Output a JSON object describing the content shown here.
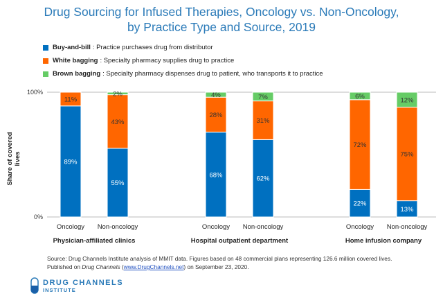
{
  "chart_data": {
    "type": "bar",
    "stacked": true,
    "title": "Drug Sourcing for Infused Therapies, Oncology vs. Non-Oncology, by Practice Type and Source, 2019",
    "title_lines": [
      "Drug Sourcing for Infused Therapies, Oncology vs. Non-Oncology,",
      "by Practice Type and Source, 2019"
    ],
    "ylabel": "Share of covered lives",
    "ylim": [
      0,
      100
    ],
    "yticks": [
      "0%",
      "100%"
    ],
    "groups": [
      "Physician-affiliated clinics",
      "Hospital outpatient department",
      "Home infusion company"
    ],
    "categories": [
      "Oncology",
      "Non-oncology",
      "Oncology",
      "Non-oncology",
      "Oncology",
      "Non-oncology"
    ],
    "series": [
      {
        "name": "Buy-and-bill",
        "description": "Practice purchases drug from distributor",
        "color": "#0070C0",
        "values": [
          89,
          55,
          68,
          62,
          22,
          13
        ],
        "labels": [
          "89%",
          "55%",
          "68%",
          "62%",
          "22%",
          "13%"
        ]
      },
      {
        "name": "White bagging",
        "description": "Specialty pharmacy supplies drug to practice",
        "color": "#FF6600",
        "values": [
          11,
          43,
          28,
          31,
          72,
          75
        ],
        "labels": [
          "11%",
          "43%",
          "28%",
          "31%",
          "72%",
          "75%"
        ]
      },
      {
        "name": "Brown bagging",
        "description": "Specialty pharmacy dispenses drug to patient, who transports it to practice",
        "color": "#66CC66",
        "values": [
          0,
          2,
          4,
          7,
          6,
          12
        ],
        "labels": [
          "",
          "2%",
          "4%",
          "7%",
          "6%",
          "12%"
        ]
      }
    ],
    "legend": "top-left"
  },
  "source": {
    "line1": "Source: Drug Channels Institute analysis of MMIT data. Figures based on 48 commercial plans representing 126.6 million covered lives.",
    "pre": "Published on ",
    "italic": "Drug Channels",
    "mid": " (",
    "link": "www.DrugChannels.net",
    "post": ") on September 23, 2020."
  },
  "logo": {
    "line1": "DRUG CHANNELS",
    "line2": "INSTITUTE"
  }
}
